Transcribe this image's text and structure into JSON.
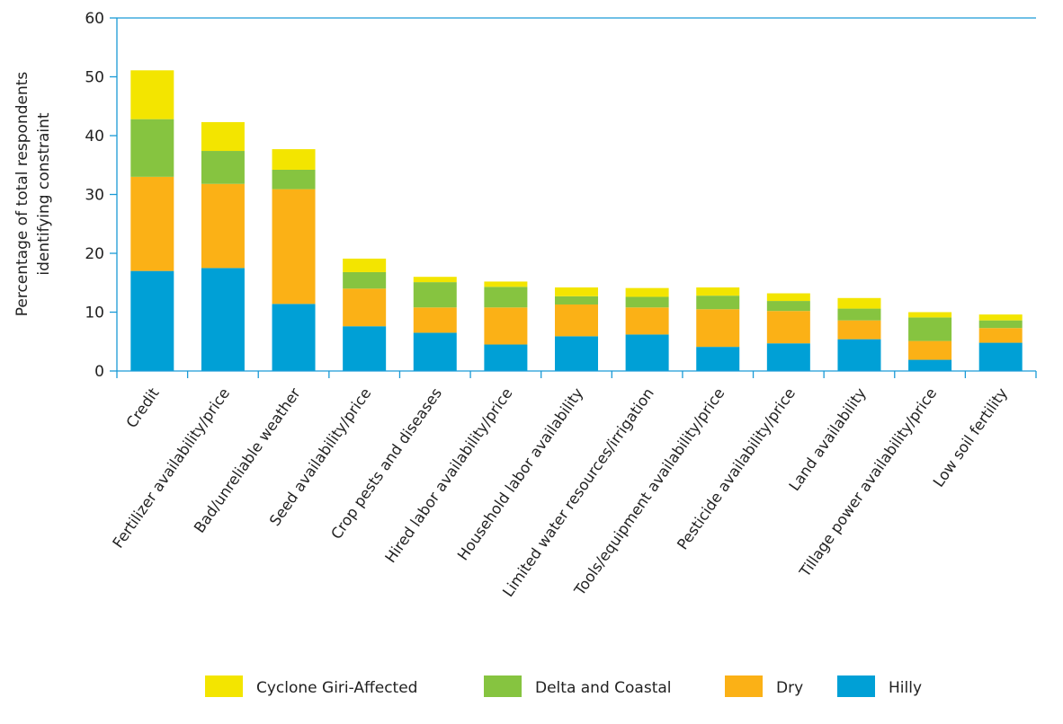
{
  "chart_data": {
    "type": "bar",
    "stacked": true,
    "ylabel_lines": [
      "Percentage of total respondents",
      "identifying constraint"
    ],
    "ylim": [
      0,
      60
    ],
    "yticks": [
      0,
      10,
      20,
      30,
      40,
      50,
      60
    ],
    "grid": false,
    "legend_position": "bottom",
    "categories": [
      "Credit",
      "Fertilizer availability/price",
      "Bad/unreliable weather",
      "Seed availability/price",
      "Crop pests and diseases",
      "Hired labor availability/price",
      "Household labor availability",
      "Limited water resources/irrigation",
      "Tools/equipment availability/price",
      "Pesticide availability/price",
      "Land availability",
      "Tillage power availability/price",
      "Low soil fertility"
    ],
    "series": [
      {
        "name": "Hilly",
        "color": "#00a0d6",
        "values": [
          17.0,
          17.5,
          11.4,
          7.6,
          6.5,
          4.5,
          5.9,
          6.2,
          4.1,
          4.7,
          5.4,
          1.9,
          4.8
        ]
      },
      {
        "name": "Dry",
        "color": "#fbb116",
        "values": [
          16.0,
          14.3,
          19.5,
          6.4,
          4.3,
          6.3,
          5.4,
          4.6,
          6.4,
          5.5,
          3.2,
          3.2,
          2.5
        ]
      },
      {
        "name": "Delta and Coastal",
        "color": "#86c440",
        "values": [
          9.8,
          5.6,
          3.3,
          2.8,
          4.3,
          3.5,
          1.4,
          1.8,
          2.3,
          1.7,
          2.0,
          4.0,
          1.3
        ]
      },
      {
        "name": "Cyclone Giri-Affected",
        "color": "#f3e500",
        "values": [
          8.3,
          4.9,
          3.5,
          2.3,
          0.9,
          0.9,
          1.5,
          1.5,
          1.4,
          1.3,
          1.8,
          0.9,
          1.0
        ]
      }
    ],
    "legend_order": [
      "Cyclone Giri-Affected",
      "Delta and Coastal",
      "Dry",
      "Hilly"
    ]
  },
  "colors": {
    "axis": "#1a9ad6",
    "text": "#222222"
  }
}
